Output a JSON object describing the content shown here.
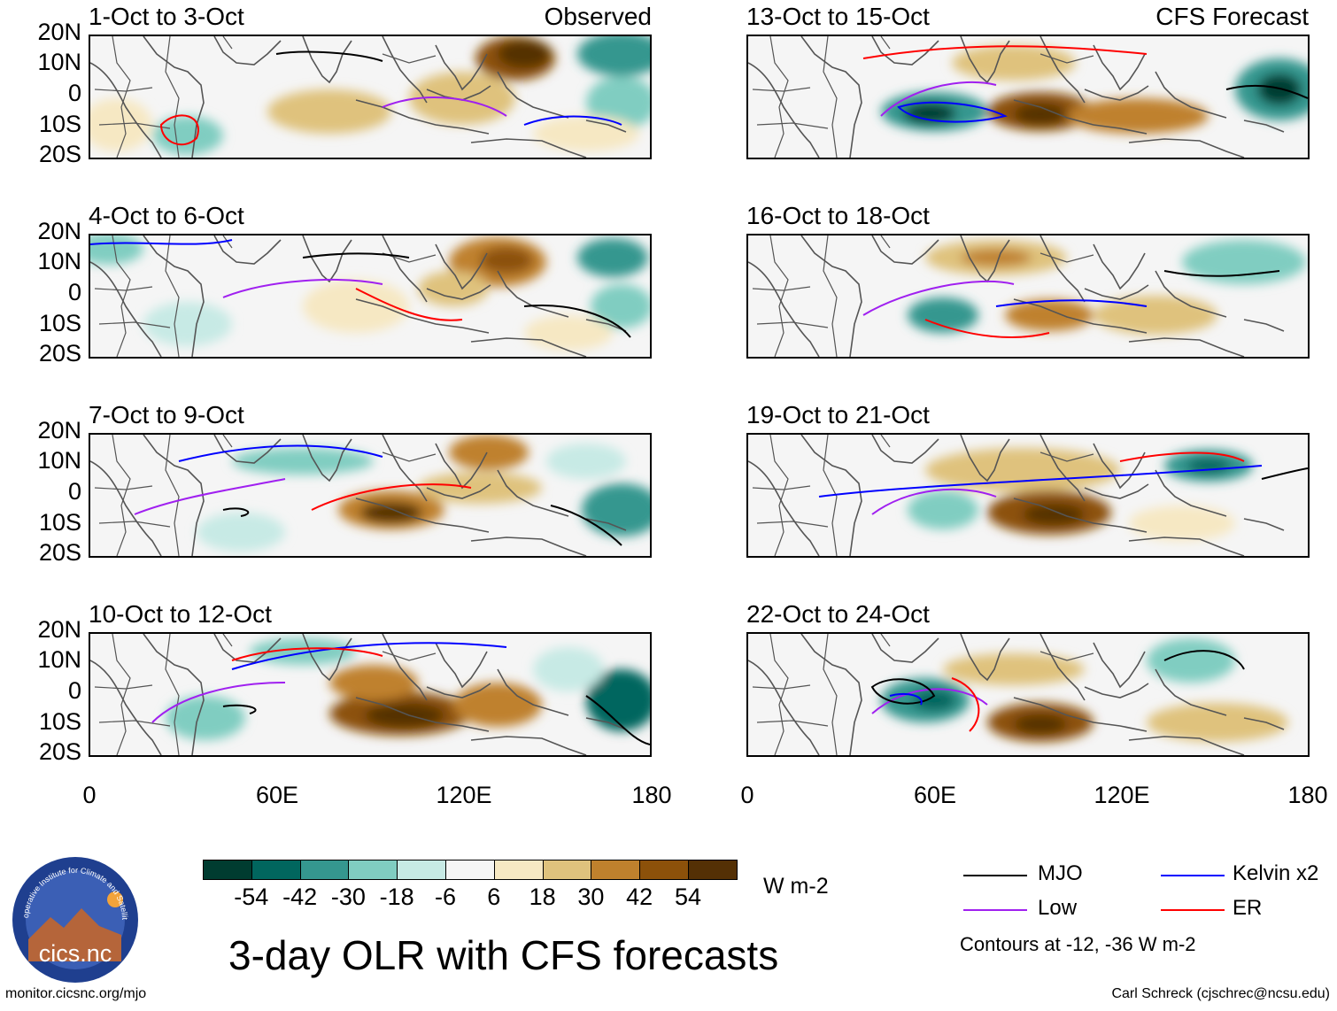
{
  "panels": {
    "p1": {
      "title": "1-Oct to 3-Oct",
      "tag": "Observed"
    },
    "p2": {
      "title": "4-Oct to 6-Oct",
      "tag": ""
    },
    "p3": {
      "title": "7-Oct to 9-Oct",
      "tag": ""
    },
    "p4": {
      "title": "10-Oct to 12-Oct",
      "tag": ""
    },
    "p5": {
      "title": "13-Oct to 15-Oct",
      "tag": "CFS Forecast"
    },
    "p6": {
      "title": "16-Oct to 18-Oct",
      "tag": ""
    },
    "p7": {
      "title": "19-Oct to 21-Oct",
      "tag": ""
    },
    "p8": {
      "title": "22-Oct to 24-Oct",
      "tag": ""
    }
  },
  "lat_ticks": [
    "20N",
    "10N",
    "0",
    "10S",
    "20S"
  ],
  "lon_ticks": [
    "0",
    "60E",
    "120E",
    "180"
  ],
  "colorbar": {
    "labels": [
      "-54",
      "-42",
      "-30",
      "-18",
      "-6",
      "6",
      "18",
      "30",
      "42",
      "54"
    ],
    "colors": [
      "#003c30",
      "#01665e",
      "#35978f",
      "#80cdc1",
      "#c7eae5",
      "#f5f5f5",
      "#f6e8c3",
      "#dfc27d",
      "#bf812d",
      "#8c510a",
      "#543005"
    ],
    "units": "W m-2"
  },
  "title": "3-day OLR with CFS forecasts",
  "legend": {
    "mjo": {
      "label": "MJO",
      "color": "#000000"
    },
    "kelvin": {
      "label": "Kelvin x2",
      "color": "#0000ff"
    },
    "low": {
      "label": "Low",
      "color": "#a020f0"
    },
    "er": {
      "label": "ER",
      "color": "#ff0000"
    },
    "note": "Contours at -12, -36 W m-2"
  },
  "logo": {
    "text": "cics.nc",
    "ring_text": "Cooperative Institute for Climate and Satellites"
  },
  "footer": {
    "left": "monitor.cicsnc.org/mjo",
    "right": "Carl Schreck (cjschrec@ncsu.edu)"
  }
}
